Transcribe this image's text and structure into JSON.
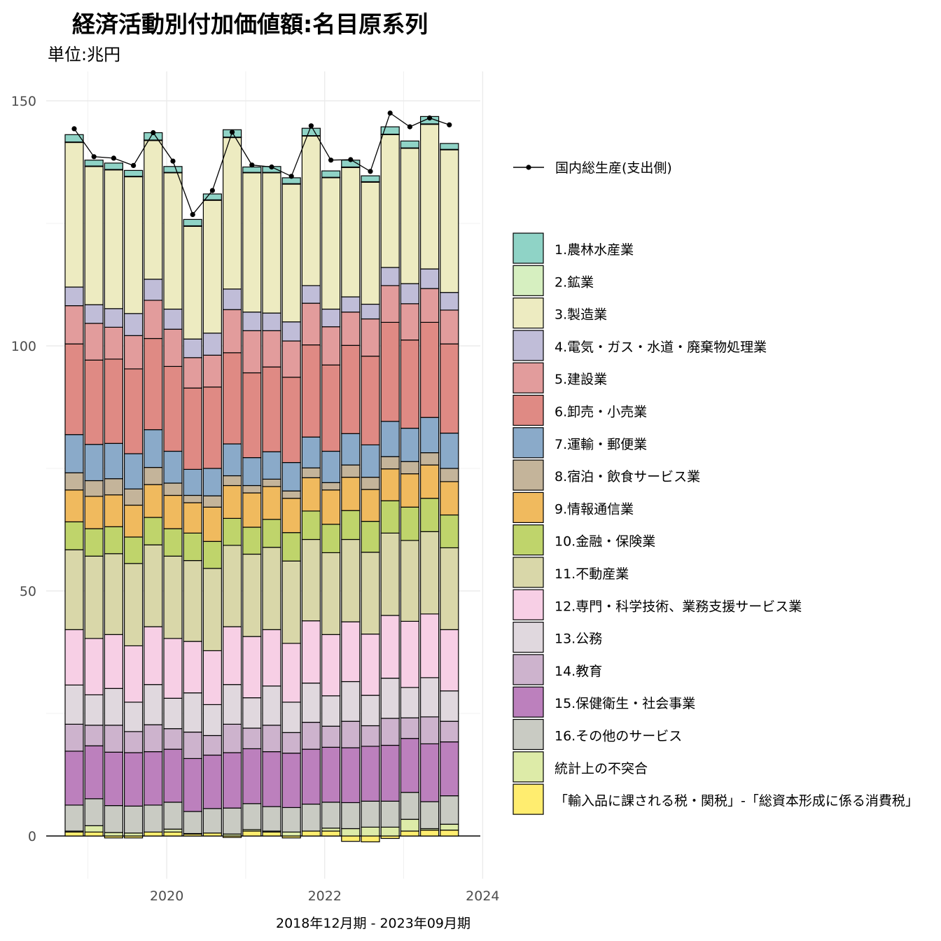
{
  "chart_data": {
    "type": "bar",
    "stacked": true,
    "title": "経済活動別付加価値額:名目原系列",
    "subtitle": "単位:兆円",
    "xlabel": "2018年12月期 - 2023年09月期",
    "ylabel": "",
    "ylim": [
      -1.5,
      158
    ],
    "y_ticks": [
      0,
      50,
      100,
      150
    ],
    "x_ticks": [
      "2020",
      "2022",
      "2024"
    ],
    "grid": true,
    "legend_position": "right",
    "categories": [
      "2018-12",
      "2019-03",
      "2019-06",
      "2019-09",
      "2019-12",
      "2020-03",
      "2020-06",
      "2020-09",
      "2020-12",
      "2021-03",
      "2021-06",
      "2021-09",
      "2021-12",
      "2022-03",
      "2022-06",
      "2022-09",
      "2022-12",
      "2023-03",
      "2023-06",
      "2023-09"
    ],
    "series": [
      {
        "name": "「輸入品に課される税・関税」-「総資本形成に係る消費税」",
        "color": "#FFED6F",
        "values": [
          0.8,
          0.8,
          -0.4,
          -0.4,
          0.8,
          0.8,
          0.4,
          0.6,
          -0.3,
          1.0,
          0.8,
          -0.4,
          1.0,
          1.0,
          -1.1,
          -1.2,
          -0.5,
          1.0,
          1.2,
          1.2
        ]
      },
      {
        "name": "統計上の不突合",
        "color": "#DDEBA8",
        "values": [
          0.2,
          1.3,
          0.7,
          0.6,
          0,
          0.6,
          0.1,
          0,
          0.4,
          0.3,
          0.2,
          0.8,
          0,
          0.6,
          1.5,
          1.8,
          1.8,
          2.4,
          0.3,
          1.2
        ]
      },
      {
        "name": "16.その他のサービス",
        "color": "#C9CBC3",
        "values": [
          5.3,
          5.5,
          5.5,
          5.5,
          5.5,
          5.5,
          4.5,
          5.0,
          5.3,
          5.3,
          5.0,
          5.0,
          5.5,
          5.3,
          5.3,
          5.3,
          5.3,
          5.5,
          5.5,
          5.8
        ]
      },
      {
        "name": "15.保健衛生・社会事業",
        "color": "#BC80BD",
        "values": [
          11.0,
          10.8,
          10.9,
          10.9,
          10.9,
          10.8,
          10.8,
          10.9,
          11.3,
          11.2,
          11.2,
          11.1,
          11.2,
          11.2,
          11.2,
          11.2,
          11.4,
          11.0,
          11.8,
          11.0
        ]
      },
      {
        "name": "14.教育",
        "color": "#CDB3CD",
        "values": [
          5.5,
          4.2,
          5.5,
          4.3,
          5.5,
          4.2,
          5.4,
          4.0,
          5.8,
          4.2,
          5.4,
          4.2,
          5.5,
          4.3,
          5.4,
          4.2,
          5.5,
          4.2,
          5.5,
          4.2
        ]
      },
      {
        "name": "13.公務",
        "color": "#E0D8DE",
        "values": [
          8.0,
          6.2,
          7.5,
          6.0,
          8.2,
          6.2,
          8.0,
          6.3,
          8.1,
          6.2,
          8.0,
          6.2,
          8.0,
          6.2,
          8.1,
          6.2,
          8.2,
          6.2,
          8.0,
          6.2
        ]
      },
      {
        "name": "12.専門・科学技術、業務支援サービス業",
        "color": "#F7CFE5",
        "values": [
          11.3,
          11.5,
          11.0,
          11.5,
          11.8,
          12.2,
          10.5,
          11.0,
          11.8,
          12.5,
          11.5,
          12.0,
          12.7,
          12.5,
          12.2,
          12.5,
          12.8,
          13.5,
          13.0,
          12.5
        ]
      },
      {
        "name": "11.不動産業",
        "color": "#D9D7A9",
        "values": [
          16.3,
          16.8,
          16.5,
          16.8,
          16.7,
          16.8,
          16.5,
          16.8,
          16.6,
          16.8,
          16.8,
          16.8,
          16.6,
          16.7,
          16.8,
          16.7,
          16.8,
          16.5,
          16.8,
          16.7
        ]
      },
      {
        "name": "10.金融・保険業",
        "color": "#BFD46B",
        "values": [
          5.7,
          5.6,
          5.5,
          5.4,
          5.6,
          5.6,
          5.6,
          5.5,
          5.5,
          5.5,
          5.7,
          5.8,
          5.8,
          5.8,
          5.9,
          6.3,
          6.6,
          6.8,
          6.8,
          6.7
        ]
      },
      {
        "name": "9.情報通信業",
        "color": "#F0BA5E",
        "values": [
          6.5,
          6.6,
          6.5,
          6.5,
          6.7,
          6.8,
          6.2,
          7.0,
          6.7,
          7.0,
          6.7,
          7.0,
          6.8,
          7.0,
          6.8,
          6.5,
          6.5,
          6.8,
          6.8,
          6.8
        ]
      },
      {
        "name": "8.宿泊・飲食サービス業",
        "color": "#C4B49A",
        "values": [
          3.5,
          3.2,
          3.3,
          3.3,
          3.5,
          2.5,
          1.5,
          2.3,
          2.0,
          1.5,
          1.5,
          1.5,
          2.0,
          1.5,
          2.5,
          2.5,
          2.5,
          2.5,
          2.5,
          2.7
        ]
      },
      {
        "name": "7.運輸・郵便業",
        "color": "#8AAAC9",
        "values": [
          7.8,
          7.4,
          7.2,
          7.2,
          7.7,
          6.5,
          5.3,
          5.6,
          6.5,
          5.7,
          5.6,
          5.8,
          6.3,
          6.4,
          6.4,
          6.6,
          7.2,
          6.8,
          7.2,
          7.2
        ]
      },
      {
        "name": "6.卸売・小売業",
        "color": "#DF8A84",
        "values": [
          18.5,
          17.2,
          17.2,
          17.3,
          18.6,
          17.3,
          16.6,
          16.6,
          18.6,
          17.3,
          17.3,
          17.4,
          18.8,
          17.6,
          18.0,
          18.1,
          20.2,
          18.0,
          19.4,
          18.2
        ]
      },
      {
        "name": "5.建設業",
        "color": "#E29C9C",
        "values": [
          7.8,
          7.5,
          6.5,
          6.8,
          7.8,
          7.6,
          6.2,
          6.5,
          8.8,
          8.6,
          7.4,
          7.4,
          8.5,
          7.8,
          6.8,
          7.6,
          7.5,
          7.4,
          6.9,
          6.9
        ]
      },
      {
        "name": "4.電気・ガス・水道・廃棄物処理業",
        "color": "#C0BDD8",
        "values": [
          3.8,
          3.8,
          3.8,
          4.5,
          4.3,
          4.1,
          3.8,
          4.5,
          4.2,
          3.8,
          3.6,
          3.9,
          3.6,
          3.6,
          3.1,
          3.0,
          3.7,
          4.1,
          4.0,
          3.6
        ]
      },
      {
        "name": "3.製造業",
        "color": "#EDEBC1",
        "values": [
          29.5,
          28.2,
          28.3,
          27.9,
          28.3,
          27.8,
          23.0,
          27.1,
          30.9,
          28.4,
          28.6,
          28.1,
          30.5,
          26.8,
          26.4,
          24.9,
          27.1,
          27.6,
          29.5,
          29.1
        ]
      },
      {
        "name": "2.鉱業",
        "color": "#D6EFC0",
        "values": [
          0.1,
          0.1,
          0.1,
          0.1,
          0.1,
          0.1,
          0.1,
          0.1,
          0.1,
          0.1,
          0.1,
          0.1,
          0.1,
          0.1,
          0.1,
          0.1,
          0.1,
          0.1,
          0.1,
          0.1
        ]
      },
      {
        "name": "1.農林水産業",
        "color": "#8FD3C6",
        "values": [
          1.5,
          1.2,
          1.3,
          1.2,
          1.5,
          1.2,
          1.3,
          1.2,
          1.5,
          1.1,
          1.2,
          1.2,
          1.5,
          1.3,
          1.4,
          1.2,
          1.5,
          1.4,
          1.5,
          1.2
        ]
      }
    ],
    "line": {
      "name": "国内総生産(支出側)",
      "color": "#000000",
      "values": [
        144.3,
        138.6,
        138.3,
        136.8,
        143.5,
        137.7,
        126.8,
        131.7,
        143.6,
        136.9,
        136.5,
        134.6,
        144.9,
        137.9,
        138.0,
        135.6,
        147.5,
        144.7,
        146.5,
        145.1
      ]
    },
    "legend_order": [
      "1.農林水産業",
      "2.鉱業",
      "3.製造業",
      "4.電気・ガス・水道・廃棄物処理業",
      "5.建設業",
      "6.卸売・小売業",
      "7.運輸・郵便業",
      "8.宿泊・飲食サービス業",
      "9.情報通信業",
      "10.金融・保険業",
      "11.不動産業",
      "12.専門・科学技術、業務支援サービス業",
      "13.公務",
      "14.教育",
      "15.保健衛生・社会事業",
      "16.その他のサービス",
      "統計上の不突合",
      "「輸入品に課される税・関税」-「総資本形成に係る消費税」"
    ]
  }
}
